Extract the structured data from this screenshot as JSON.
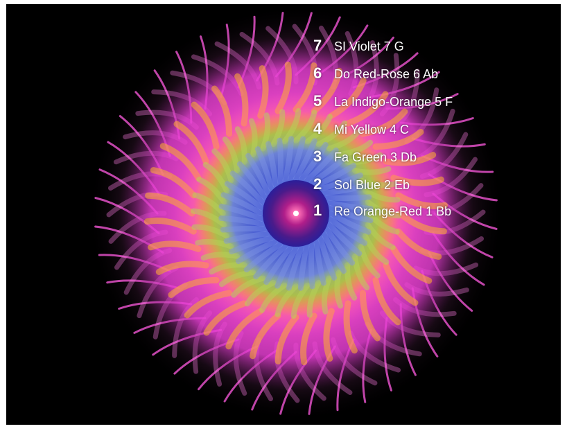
{
  "legend": {
    "rows": [
      {
        "number": "7",
        "text": "SI  Violet 7 G"
      },
      {
        "number": "6",
        "text": "Do  Red-Rose 6  Ab"
      },
      {
        "number": "5",
        "text": "La  Indigo-Orange 5 F"
      },
      {
        "number": "4",
        "text": "Mi  Yellow 4 C"
      },
      {
        "number": "3",
        "text": "Fa Green 3  Db"
      },
      {
        "number": "2",
        "text": "Sol  Blue 2  Eb"
      },
      {
        "number": "1",
        "text": "Re  Orange-Red 1 Bb"
      }
    ]
  },
  "colors": {
    "background": "#000000",
    "frame": "#ffffff",
    "outer_glow": "#ff4fd6",
    "orange_ring": "#ff8a1e",
    "green_ring": "#8fbf3a",
    "blue_ring": "#4e66d8",
    "core": "#7a1a9a",
    "center_spark": "#ffffff"
  }
}
